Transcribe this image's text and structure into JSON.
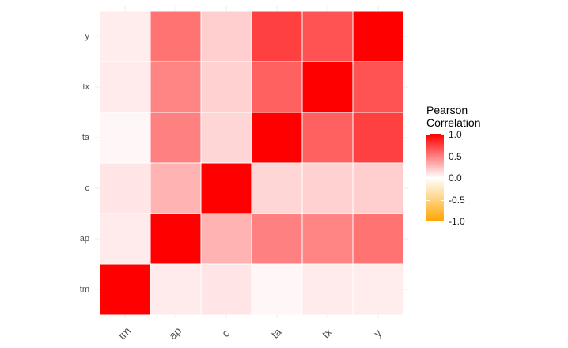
{
  "chart_data": {
    "type": "heatmap",
    "x_categories": [
      "tm",
      "ap",
      "c",
      "ta",
      "tx",
      "y"
    ],
    "y_categories": [
      "tm",
      "ap",
      "c",
      "ta",
      "tx",
      "y"
    ],
    "matrix": [
      [
        1.0,
        0.08,
        0.1,
        0.03,
        0.08,
        0.07
      ],
      [
        0.08,
        1.0,
        0.3,
        0.5,
        0.48,
        0.55
      ],
      [
        0.1,
        0.3,
        1.0,
        0.16,
        0.18,
        0.19
      ],
      [
        0.03,
        0.5,
        0.16,
        1.0,
        0.62,
        0.75
      ],
      [
        0.08,
        0.48,
        0.18,
        0.62,
        1.0,
        0.68
      ],
      [
        0.07,
        0.55,
        0.19,
        0.75,
        0.68,
        1.0
      ]
    ],
    "legend": {
      "title": "Pearson\nCorrelation",
      "limits": [
        -1,
        1
      ],
      "breaks": [
        1.0,
        0.5,
        0.0,
        -0.5,
        -1.0
      ],
      "break_labels": [
        "1.0",
        "0.5",
        "0.0",
        "-0.5",
        "-1.0"
      ],
      "placement": "right"
    },
    "colors": {
      "high": "#ff0000",
      "mid": "#ffffff",
      "low": "#ffa500",
      "grid": "#ebebeb"
    },
    "grid": true,
    "xlabel": "",
    "ylabel": ""
  }
}
